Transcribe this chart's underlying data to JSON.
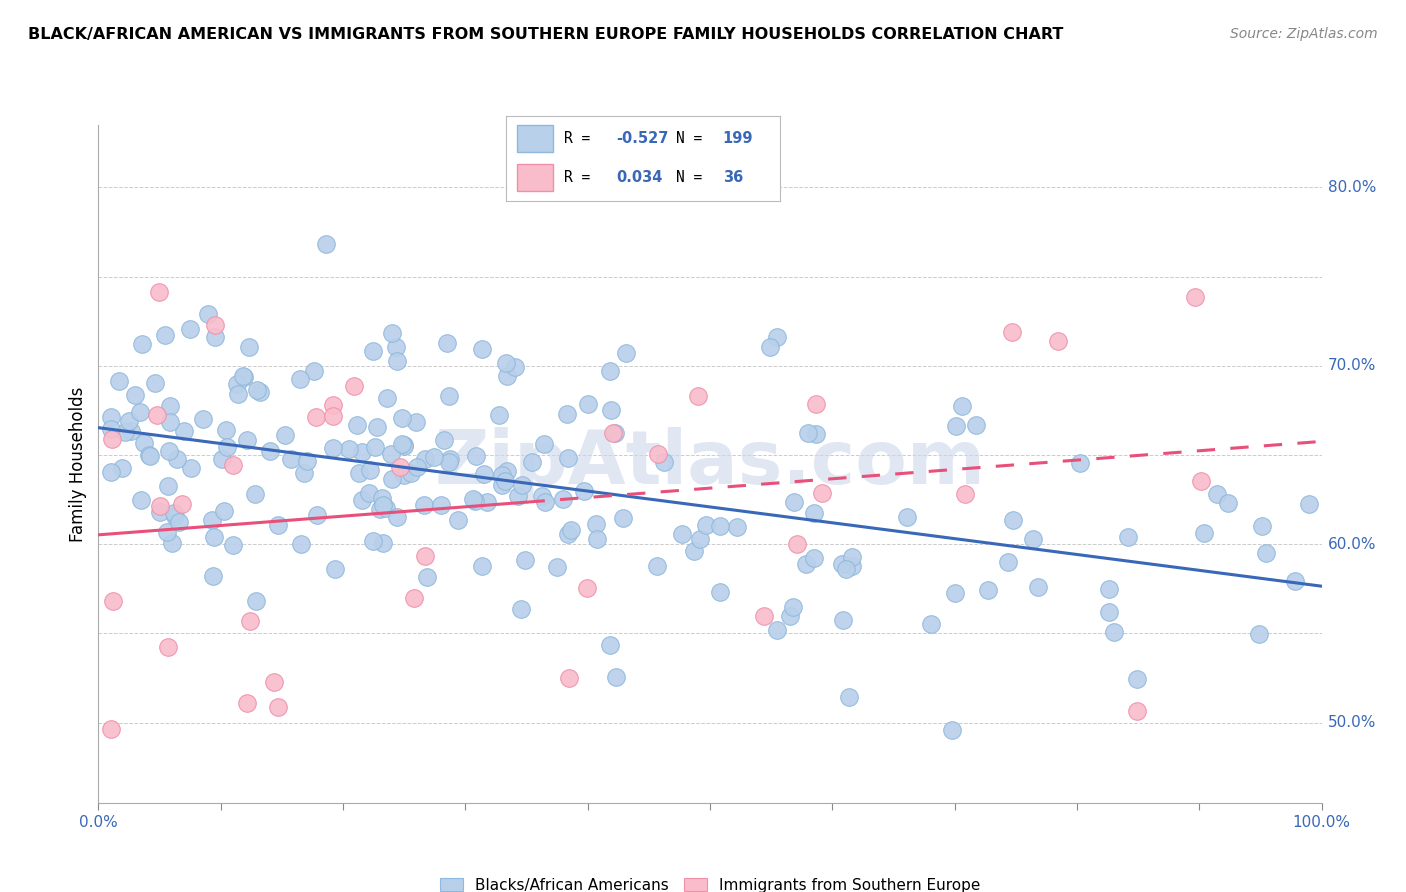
{
  "title": "BLACK/AFRICAN AMERICAN VS IMMIGRANTS FROM SOUTHERN EUROPE FAMILY HOUSEHOLDS CORRELATION CHART",
  "source": "Source: ZipAtlas.com",
  "ylabel": "Family Households",
  "xlim": [
    0.0,
    1.0
  ],
  "ylim": [
    0.455,
    0.835
  ],
  "right_yticks": [
    0.5,
    0.6,
    0.7,
    0.8
  ],
  "right_ytick_labels": [
    "50.0%",
    "60.0%",
    "70.0%",
    "80.0%"
  ],
  "xtick_positions": [
    0.0,
    0.1,
    0.2,
    0.3,
    0.4,
    0.5,
    0.6,
    0.7,
    0.8,
    0.9,
    1.0
  ],
  "xtick_labels_show": [
    "0.0%",
    "",
    "",
    "",
    "",
    "",
    "",
    "",
    "",
    "",
    "100.0%"
  ],
  "legend_blue_r": "-0.527",
  "legend_blue_n": "199",
  "legend_pink_r": "0.034",
  "legend_pink_n": "36",
  "legend_label_blue": "Blacks/African Americans",
  "legend_label_pink": "Immigrants from Southern Europe",
  "blue_color": "#b8d0ea",
  "pink_color": "#f9bccb",
  "blue_edge": "#90b8dc",
  "pink_edge": "#f090a8",
  "trend_blue": "#3a68b8",
  "trend_pink": "#e8507a",
  "background_color": "#ffffff",
  "grid_color": "#cccccc",
  "watermark": "ZipAtlas.com",
  "watermark_color": "#ccd8ec",
  "blue_trend_start_y": 0.66,
  "blue_trend_end_y": 0.578,
  "pink_trend_start_y": 0.622,
  "pink_trend_end_y": 0.643,
  "seed_blue": 12,
  "seed_pink": 77
}
